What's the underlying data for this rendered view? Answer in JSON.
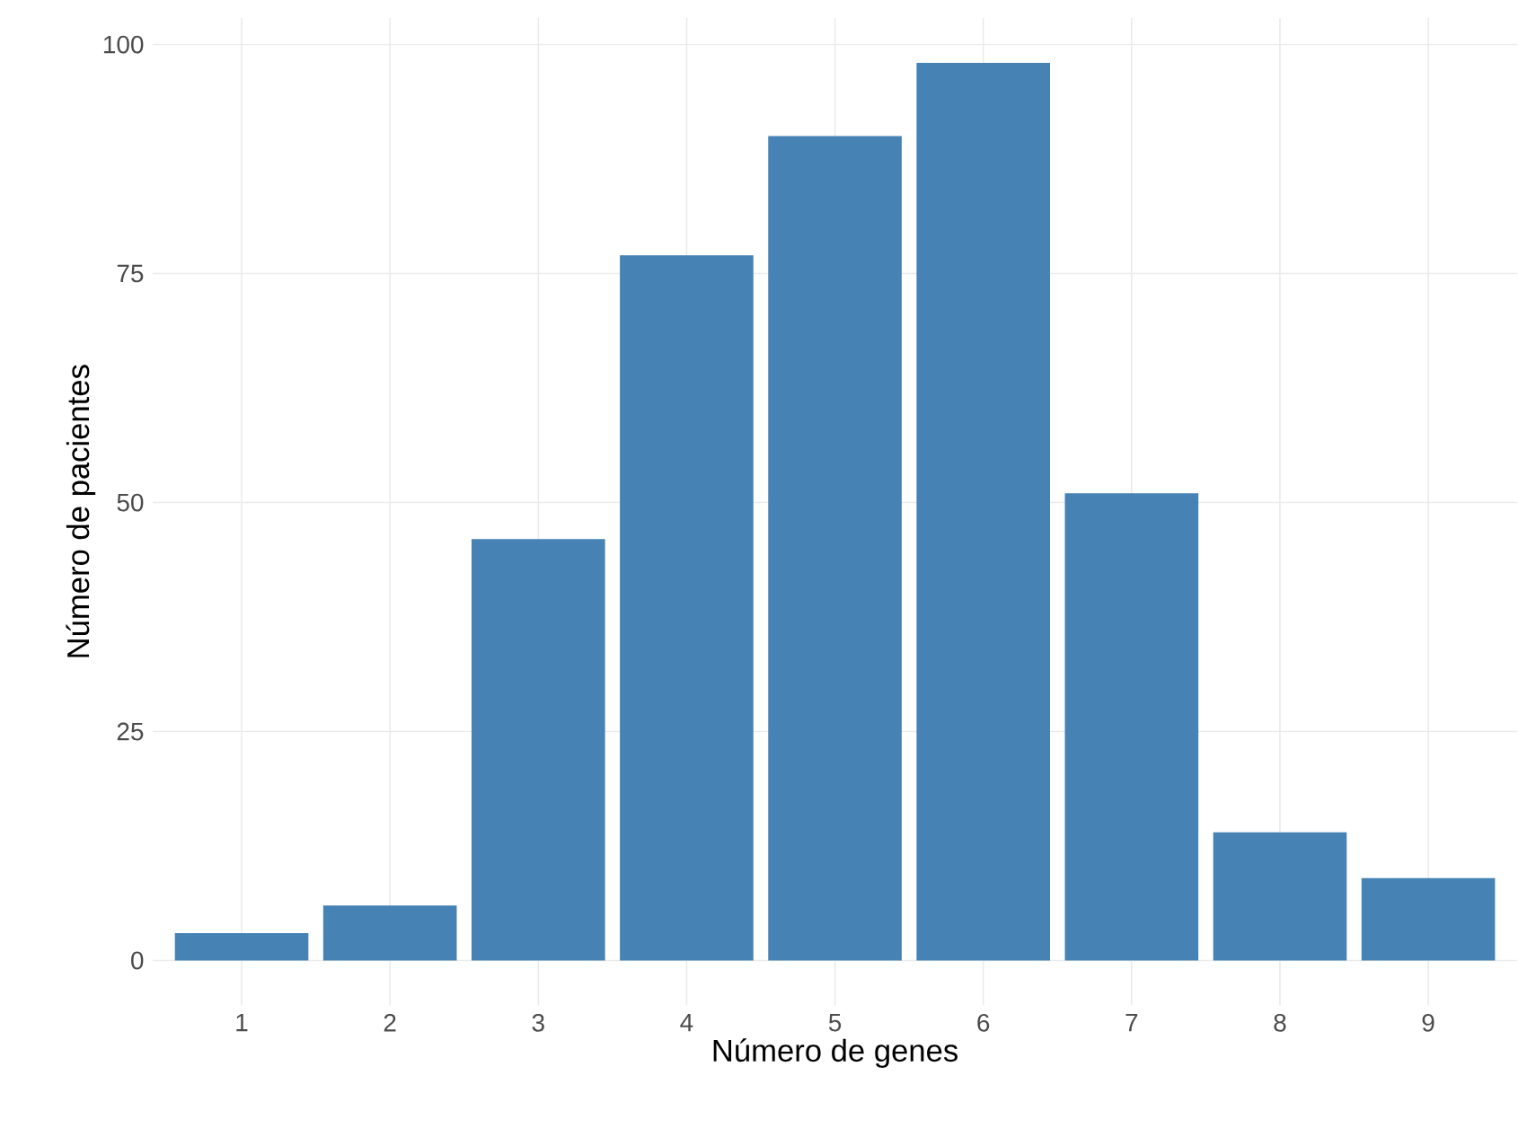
{
  "chart_data": {
    "type": "bar",
    "xlabel": "Número de genes",
    "ylabel": "Número de pacientes",
    "categories": [
      "1",
      "2",
      "3",
      "4",
      "5",
      "6",
      "7",
      "8",
      "9"
    ],
    "values": [
      3,
      6,
      46,
      77,
      90,
      98,
      51,
      14,
      9
    ],
    "color": "#4682b4",
    "ylim": [
      -4.9,
      102.9
    ],
    "yticks": [
      0,
      25,
      50,
      75,
      100
    ],
    "grid": true
  }
}
